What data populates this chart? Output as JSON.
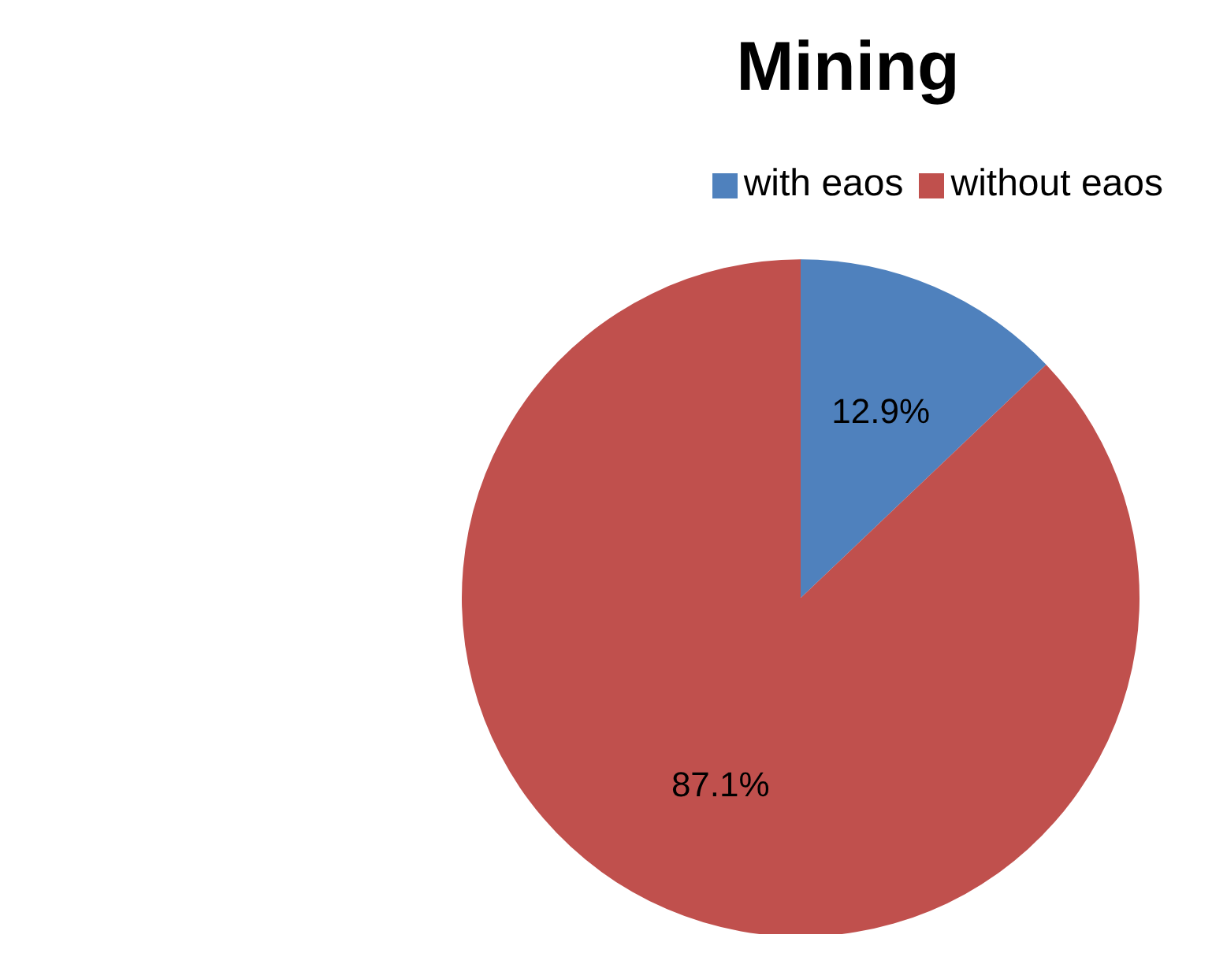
{
  "chart_data": {
    "type": "pie",
    "title": "Mining",
    "categories": [
      "with eaos",
      "without eaos"
    ],
    "values": [
      12.9,
      87.1
    ],
    "colors": [
      "#4f81bd",
      "#c0504d"
    ],
    "value_labels": [
      "12.9%",
      "87.1%"
    ],
    "legend": "top right"
  }
}
